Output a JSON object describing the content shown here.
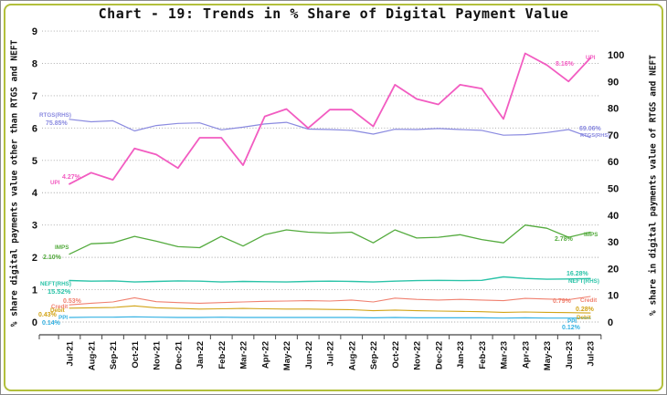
{
  "title": "Chart - 19: Trends in % Share of Digital Payment Value",
  "axes": {
    "left": {
      "title": "% share digital payments value other than RTGS and NEFT",
      "ticks": [
        0,
        1,
        2,
        3,
        4,
        5,
        6,
        7,
        8,
        9
      ],
      "range": [
        0,
        9
      ]
    },
    "right": {
      "title": "% share in digital payments value of RTGS and NEFT",
      "ticks": [
        0,
        10,
        20,
        30,
        40,
        50,
        60,
        70,
        80,
        90,
        100
      ],
      "range": [
        0,
        100
      ]
    }
  },
  "colors": {
    "frame": "#b2bf3c",
    "grid": "#a3a3a3",
    "axis": "#444444",
    "text": "#111111"
  },
  "chart_data": {
    "type": "line",
    "grid": "horizontal-dotted",
    "legend": "inline-data-labels",
    "x": [
      "Jul-21",
      "Aug-21",
      "Sep-21",
      "Oct-21",
      "Nov-21",
      "Dec-21",
      "Jan-22",
      "Feb-22",
      "Mar-22",
      "Apr-22",
      "May-22",
      "Jun-22",
      "Jul-22",
      "Aug-22",
      "Sep-22",
      "Oct-22",
      "Nov-22",
      "Dec-22",
      "Jan-23",
      "Feb-23",
      "Mar-23",
      "Apr-23",
      "May-23",
      "Jun-23",
      "Jul-23"
    ],
    "ylim_left": [
      0,
      9
    ],
    "ylim_right": [
      0,
      100
    ],
    "series": [
      {
        "name": "NEFT(RHS)",
        "axis": "right",
        "color": "#2bc3a8",
        "width": 1.4,
        "values": [
          15.52,
          15.3,
          15.4,
          15.0,
          15.2,
          15.4,
          15.3,
          15.0,
          15.2,
          15.1,
          15.0,
          15.2,
          15.3,
          15.2,
          15.0,
          15.3,
          15.5,
          15.6,
          15.5,
          15.6,
          16.9,
          16.3,
          16.0,
          16.1,
          16.28
        ],
        "start_label": {
          "name": "NEFT(RHS)",
          "value": "15.52%"
        },
        "end_label": {
          "name": "NEFT(RHS)",
          "value": "16.28%"
        }
      },
      {
        "name": "Credit",
        "axis": "left",
        "color": "#f0806f",
        "width": 1.1,
        "values": [
          0.53,
          0.58,
          0.62,
          0.75,
          0.63,
          0.6,
          0.58,
          0.6,
          0.62,
          0.64,
          0.65,
          0.66,
          0.65,
          0.68,
          0.62,
          0.74,
          0.7,
          0.68,
          0.7,
          0.68,
          0.66,
          0.73,
          0.71,
          0.69,
          0.79
        ],
        "start_label": {
          "name": "Credit",
          "value": "0.53%"
        },
        "end_label": {
          "name": "Credit",
          "value": "0.79%"
        }
      },
      {
        "name": "Debit",
        "axis": "left",
        "color": "#d2a417",
        "width": 1.1,
        "values": [
          0.43,
          0.44,
          0.45,
          0.5,
          0.44,
          0.42,
          0.4,
          0.41,
          0.42,
          0.41,
          0.4,
          0.4,
          0.39,
          0.38,
          0.35,
          0.37,
          0.35,
          0.34,
          0.33,
          0.32,
          0.3,
          0.31,
          0.3,
          0.29,
          0.28
        ],
        "start_label": {
          "name": "Debit",
          "value": "0.43%"
        },
        "end_label": {
          "name": "Debit",
          "value": "0.28%"
        }
      },
      {
        "name": "PPI",
        "axis": "left",
        "color": "#35b2e3",
        "width": 1.2,
        "values": [
          0.14,
          0.15,
          0.15,
          0.16,
          0.15,
          0.14,
          0.14,
          0.15,
          0.14,
          0.14,
          0.14,
          0.14,
          0.14,
          0.14,
          0.13,
          0.14,
          0.13,
          0.13,
          0.13,
          0.13,
          0.12,
          0.13,
          0.12,
          0.12,
          0.12
        ],
        "start_label": {
          "name": "PPI",
          "value": "0.14%"
        },
        "end_label": {
          "name": "PPI",
          "value": "0.12%"
        }
      },
      {
        "name": "IMPS",
        "axis": "left",
        "color": "#54ab3e",
        "width": 1.3,
        "values": [
          2.1,
          2.42,
          2.45,
          2.65,
          2.5,
          2.33,
          2.3,
          2.65,
          2.35,
          2.7,
          2.85,
          2.78,
          2.75,
          2.78,
          2.45,
          2.85,
          2.6,
          2.62,
          2.7,
          2.55,
          2.45,
          3.0,
          2.9,
          2.62,
          2.78
        ],
        "start_label": {
          "name": "IMPS",
          "value": "2.10%"
        },
        "end_label": {
          "name": "IMPS",
          "value": "2.78%"
        }
      },
      {
        "name": "RTGS(RHS)",
        "axis": "right",
        "color": "#8a8ae0",
        "width": 1.2,
        "values": [
          75.85,
          74.9,
          75.3,
          71.5,
          73.5,
          74.3,
          74.5,
          71.9,
          72.9,
          74.1,
          74.7,
          72.2,
          72.0,
          71.7,
          70.3,
          72.1,
          72.0,
          72.4,
          72.0,
          71.7,
          69.9,
          70.1,
          70.9,
          72.0,
          69.06
        ],
        "start_label": {
          "name": "RTGS(RHS)",
          "value": "75.85%"
        },
        "end_label": {
          "name": "RTGS(RHS)",
          "value": "69.06%"
        }
      },
      {
        "name": "UPI",
        "axis": "left",
        "color": "#f25cc1",
        "width": 1.8,
        "values": [
          4.27,
          4.62,
          4.4,
          5.37,
          5.18,
          4.76,
          5.7,
          5.7,
          4.85,
          6.36,
          6.59,
          6.0,
          6.57,
          6.57,
          6.05,
          7.34,
          6.9,
          6.73,
          7.34,
          7.22,
          6.28,
          8.31,
          7.95,
          7.44,
          8.16
        ],
        "start_label": {
          "name": "UPI",
          "value": "4.27%"
        },
        "end_label": {
          "name": "UPI",
          "value": "8.16%"
        }
      }
    ]
  }
}
